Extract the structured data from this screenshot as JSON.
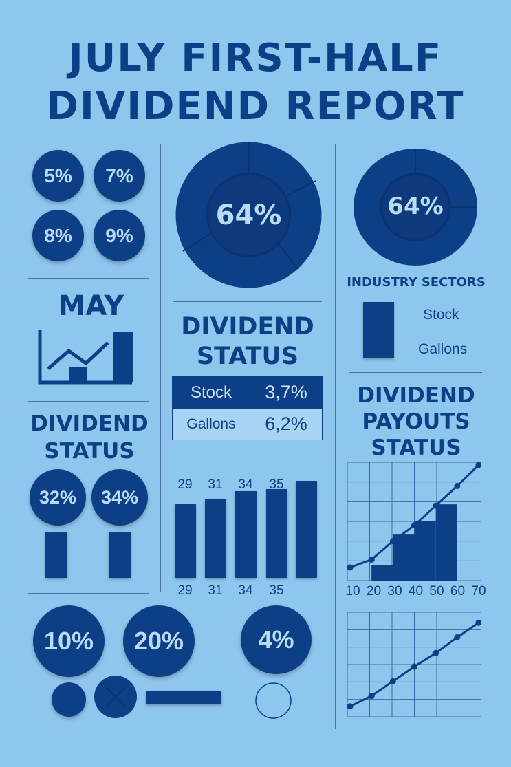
{
  "title": {
    "line1": "JULY FIRST-HALF",
    "line2": "DIVIDEND REPORT"
  },
  "colors": {
    "background": "#8fc6ee",
    "primary": "#0d3f86",
    "light_text": "#b9dbf6"
  },
  "left_column": {
    "top_badges": [
      "5%",
      "7%",
      "8%",
      "9%"
    ],
    "month_label": "MAY",
    "status_title_line1": "DIVIDEND",
    "status_title_line2": "STATUS",
    "status_badges": [
      "32%",
      "34%"
    ],
    "status_bar_levels": [
      0.6,
      0.6
    ]
  },
  "center_column": {
    "donut_value": "64%",
    "status_title_line1": "DIVIDEND",
    "status_title_line2": "STATUS",
    "table": [
      {
        "label": "Stock",
        "value": "3,7%"
      },
      {
        "label": "Gallons",
        "value": "6,2%"
      }
    ]
  },
  "right_column": {
    "donut_value": "64%",
    "sectors_title": "INDUSTRY SECTORS",
    "legend": [
      "Stock",
      "Gallons"
    ],
    "payouts_title_line1": "DIVIDEND",
    "payouts_title_line2": "PAYOUTS",
    "payouts_title_line3": "STATUS",
    "x_ticks": [
      "10",
      "20",
      "30",
      "40",
      "50",
      "60",
      "70"
    ]
  },
  "bottom_row": {
    "badges": [
      "10%",
      "20%",
      "4%"
    ]
  },
  "chart_data": [
    {
      "type": "bar",
      "categories": [
        "29",
        "31",
        "34",
        "35",
        ""
      ],
      "values": [
        29,
        31,
        34,
        35,
        38
      ],
      "top_labels": [
        "29",
        "31",
        "34",
        "35"
      ],
      "bottom_labels": [
        "29",
        "31",
        "34",
        "35"
      ],
      "ylim": [
        0,
        40
      ],
      "grid": false
    },
    {
      "type": "line",
      "x": [
        10,
        20,
        30,
        40,
        50,
        60,
        70
      ],
      "y": [
        1,
        1.6,
        3,
        4.2,
        5.7,
        7.2,
        8.8
      ],
      "bars": [
        {
          "x": 20,
          "value": 1.2
        },
        {
          "x": 30,
          "value": 3.5
        },
        {
          "x": 40,
          "value": 4.5
        },
        {
          "x": 50,
          "value": 5.8
        }
      ],
      "x_ticks": [
        "10",
        "20",
        "30",
        "40",
        "50",
        "60",
        "70"
      ],
      "ylim": [
        0,
        9
      ],
      "grid": true
    },
    {
      "type": "line",
      "x": [
        10,
        20,
        30,
        40,
        50,
        60,
        70
      ],
      "y": [
        1,
        2,
        3.4,
        4.8,
        6.1,
        7.6,
        9
      ],
      "ylim": [
        0,
        10
      ],
      "grid": true
    }
  ]
}
